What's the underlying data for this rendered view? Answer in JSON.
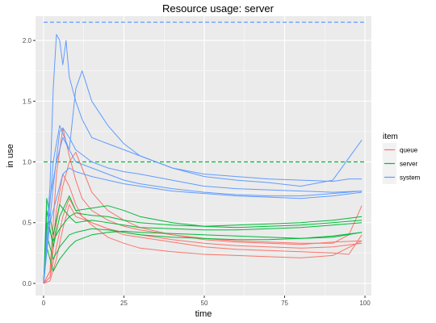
{
  "chart_data": {
    "type": "line",
    "title": "Resource usage: server",
    "xlabel": "time",
    "ylabel": "in use",
    "xlim": [
      -2.5,
      102
    ],
    "ylim": [
      -0.1,
      2.2
    ],
    "x_ticks": [
      0,
      25,
      50,
      75,
      100
    ],
    "x_tick_labels": [
      "0",
      "25",
      "50",
      "75",
      "100"
    ],
    "y_ticks": [
      0.0,
      0.5,
      1.0,
      1.5,
      2.0
    ],
    "y_tick_labels": [
      "0.0",
      "0.5",
      "1.0",
      "1.5",
      "2.0"
    ],
    "grid": true,
    "legend": {
      "title": "item",
      "placement": "right",
      "entries": [
        {
          "name": "queue",
          "color": "#F8766D"
        },
        {
          "name": "server",
          "color": "#00BA38"
        },
        {
          "name": "system",
          "color": "#619CFF"
        }
      ]
    },
    "reference_lines": [
      {
        "series": "server",
        "y": 1.0,
        "style": "dashed",
        "color": "#00BA38"
      },
      {
        "series": "system",
        "y": 2.15,
        "style": "dashed",
        "color": "#619CFF"
      }
    ],
    "series": [
      {
        "name": "queue",
        "color": "#F8766D",
        "x": [
          0,
          2,
          4,
          6,
          8,
          10,
          12,
          15,
          20,
          25,
          30,
          40,
          50,
          60,
          70,
          80,
          90,
          95,
          99
        ],
        "y": [
          0,
          0.1,
          0.9,
          1.28,
          1.05,
          0.85,
          0.7,
          0.6,
          0.52,
          0.47,
          0.44,
          0.4,
          0.37,
          0.35,
          0.34,
          0.33,
          0.33,
          0.4,
          0.64
        ]
      },
      {
        "name": "queue",
        "color": "#F8766D",
        "x": [
          0,
          2,
          4,
          6,
          8,
          10,
          12,
          15,
          20,
          25,
          30,
          40,
          50,
          60,
          70,
          80,
          90,
          99
        ],
        "y": [
          0,
          0.05,
          0.5,
          0.8,
          1.0,
          1.08,
          0.95,
          0.75,
          0.6,
          0.52,
          0.46,
          0.4,
          0.36,
          0.34,
          0.33,
          0.32,
          0.34,
          0.35
        ]
      },
      {
        "name": "queue",
        "color": "#F8766D",
        "x": [
          0,
          2,
          4,
          6,
          8,
          10,
          12,
          15,
          20,
          25,
          30,
          40,
          50,
          60,
          70,
          80,
          90,
          99
        ],
        "y": [
          0,
          0.1,
          0.6,
          0.9,
          0.8,
          0.65,
          0.55,
          0.5,
          0.45,
          0.42,
          0.4,
          0.36,
          0.33,
          0.31,
          0.3,
          0.29,
          0.3,
          0.33
        ]
      },
      {
        "name": "queue",
        "color": "#F8766D",
        "x": [
          0,
          2,
          4,
          6,
          8,
          10,
          15,
          20,
          25,
          30,
          40,
          50,
          60,
          70,
          80,
          90,
          99
        ],
        "y": [
          0,
          0.05,
          0.3,
          0.55,
          0.7,
          0.6,
          0.48,
          0.38,
          0.33,
          0.29,
          0.26,
          0.24,
          0.23,
          0.22,
          0.21,
          0.23,
          0.35
        ]
      },
      {
        "name": "queue",
        "color": "#F8766D",
        "x": [
          0,
          2,
          4,
          6,
          8,
          10,
          15,
          20,
          25,
          30,
          40,
          50,
          60,
          70,
          80,
          90,
          95,
          99
        ],
        "y": [
          0,
          0.02,
          0.2,
          0.45,
          0.65,
          0.55,
          0.5,
          0.45,
          0.4,
          0.38,
          0.34,
          0.3,
          0.28,
          0.27,
          0.26,
          0.25,
          0.24,
          0.4
        ]
      },
      {
        "name": "server",
        "color": "#00BA38",
        "x": [
          0,
          1,
          3,
          5,
          8,
          10,
          15,
          20,
          25,
          30,
          40,
          50,
          60,
          70,
          80,
          90,
          99
        ],
        "y": [
          0,
          0.6,
          0.3,
          0.55,
          0.72,
          0.6,
          0.62,
          0.64,
          0.6,
          0.55,
          0.5,
          0.47,
          0.46,
          0.47,
          0.48,
          0.5,
          0.52
        ]
      },
      {
        "name": "server",
        "color": "#00BA38",
        "x": [
          0,
          1,
          3,
          5,
          8,
          10,
          15,
          20,
          25,
          30,
          40,
          50,
          60,
          70,
          80,
          90,
          99
        ],
        "y": [
          0,
          0.7,
          0.4,
          0.65,
          0.55,
          0.58,
          0.56,
          0.55,
          0.52,
          0.5,
          0.48,
          0.47,
          0.48,
          0.49,
          0.5,
          0.52,
          0.55
        ]
      },
      {
        "name": "server",
        "color": "#00BA38",
        "x": [
          0,
          1,
          3,
          5,
          8,
          10,
          15,
          20,
          25,
          30,
          40,
          50,
          60,
          70,
          80,
          90,
          99
        ],
        "y": [
          0,
          0.5,
          0.35,
          0.45,
          0.55,
          0.5,
          0.52,
          0.5,
          0.48,
          0.46,
          0.45,
          0.44,
          0.44,
          0.45,
          0.46,
          0.48,
          0.5
        ]
      },
      {
        "name": "server",
        "color": "#00BA38",
        "x": [
          0,
          1,
          3,
          5,
          8,
          10,
          15,
          20,
          25,
          30,
          40,
          50,
          60,
          70,
          80,
          90,
          99
        ],
        "y": [
          0,
          0.4,
          0.2,
          0.3,
          0.4,
          0.42,
          0.45,
          0.44,
          0.42,
          0.4,
          0.38,
          0.37,
          0.36,
          0.36,
          0.37,
          0.39,
          0.42
        ]
      },
      {
        "name": "server",
        "color": "#00BA38",
        "x": [
          0,
          1,
          3,
          5,
          8,
          10,
          15,
          20,
          25,
          30,
          40,
          50,
          60,
          70,
          80,
          90,
          99
        ],
        "y": [
          0,
          0.3,
          0.1,
          0.2,
          0.3,
          0.35,
          0.4,
          0.42,
          0.43,
          0.42,
          0.41,
          0.4,
          0.39,
          0.38,
          0.37,
          0.38,
          0.42
        ]
      },
      {
        "name": "system",
        "color": "#619CFF",
        "x": [
          0,
          2,
          3,
          4,
          5,
          6,
          7,
          8,
          10,
          12,
          15,
          20,
          25,
          30,
          40,
          50,
          60,
          70,
          80,
          90,
          95,
          99
        ],
        "y": [
          0,
          0.8,
          1.6,
          2.05,
          2.0,
          1.8,
          2.0,
          1.7,
          1.5,
          1.35,
          1.2,
          1.15,
          1.1,
          1.05,
          0.95,
          0.9,
          0.88,
          0.86,
          0.85,
          0.84,
          0.86,
          0.86
        ]
      },
      {
        "name": "system",
        "color": "#619CFF",
        "x": [
          0,
          3,
          5,
          8,
          10,
          12,
          15,
          20,
          25,
          30,
          40,
          50,
          60,
          70,
          80,
          90,
          99
        ],
        "y": [
          0,
          1.0,
          1.3,
          1.1,
          1.6,
          1.75,
          1.5,
          1.3,
          1.15,
          1.05,
          0.95,
          0.88,
          0.85,
          0.83,
          0.8,
          0.85,
          1.18
        ]
      },
      {
        "name": "system",
        "color": "#619CFF",
        "x": [
          0,
          3,
          5,
          6,
          8,
          10,
          15,
          20,
          25,
          30,
          40,
          50,
          60,
          70,
          80,
          90,
          99
        ],
        "y": [
          0,
          0.8,
          1.25,
          1.28,
          1.2,
          1.1,
          1.0,
          0.95,
          0.92,
          0.9,
          0.85,
          0.8,
          0.78,
          0.77,
          0.76,
          0.75,
          0.76
        ]
      },
      {
        "name": "system",
        "color": "#619CFF",
        "x": [
          0,
          2,
          4,
          6,
          8,
          10,
          15,
          20,
          25,
          30,
          40,
          50,
          60,
          70,
          80,
          90,
          99
        ],
        "y": [
          0,
          0.7,
          1.0,
          1.2,
          1.1,
          1.0,
          0.95,
          0.9,
          0.85,
          0.82,
          0.78,
          0.75,
          0.73,
          0.72,
          0.72,
          0.74,
          0.76
        ]
      },
      {
        "name": "system",
        "color": "#619CFF",
        "x": [
          0,
          2,
          4,
          6,
          8,
          10,
          15,
          20,
          25,
          30,
          40,
          50,
          60,
          70,
          80,
          90,
          99
        ],
        "y": [
          0,
          0.5,
          0.7,
          0.9,
          0.95,
          0.92,
          0.88,
          0.85,
          0.82,
          0.8,
          0.76,
          0.74,
          0.72,
          0.71,
          0.7,
          0.72,
          0.75
        ]
      }
    ]
  }
}
